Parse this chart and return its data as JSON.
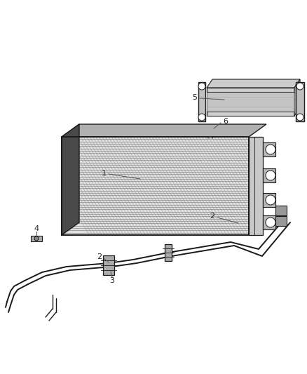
{
  "bg_color": "#ffffff",
  "lc": "#1a1a1a",
  "figsize": [
    4.38,
    5.33
  ],
  "dpi": 100,
  "fin_color": "#888888",
  "dark_fill": "#3a3a3a",
  "mid_fill": "#666666",
  "light_fill": "#aaaaaa",
  "very_light": "#cccccc",
  "bracket_fill": "#bbbbbb",
  "tube_lw": 1.1,
  "label_fs": 8,
  "label_color": "#222222",
  "callout_color": "#555555"
}
